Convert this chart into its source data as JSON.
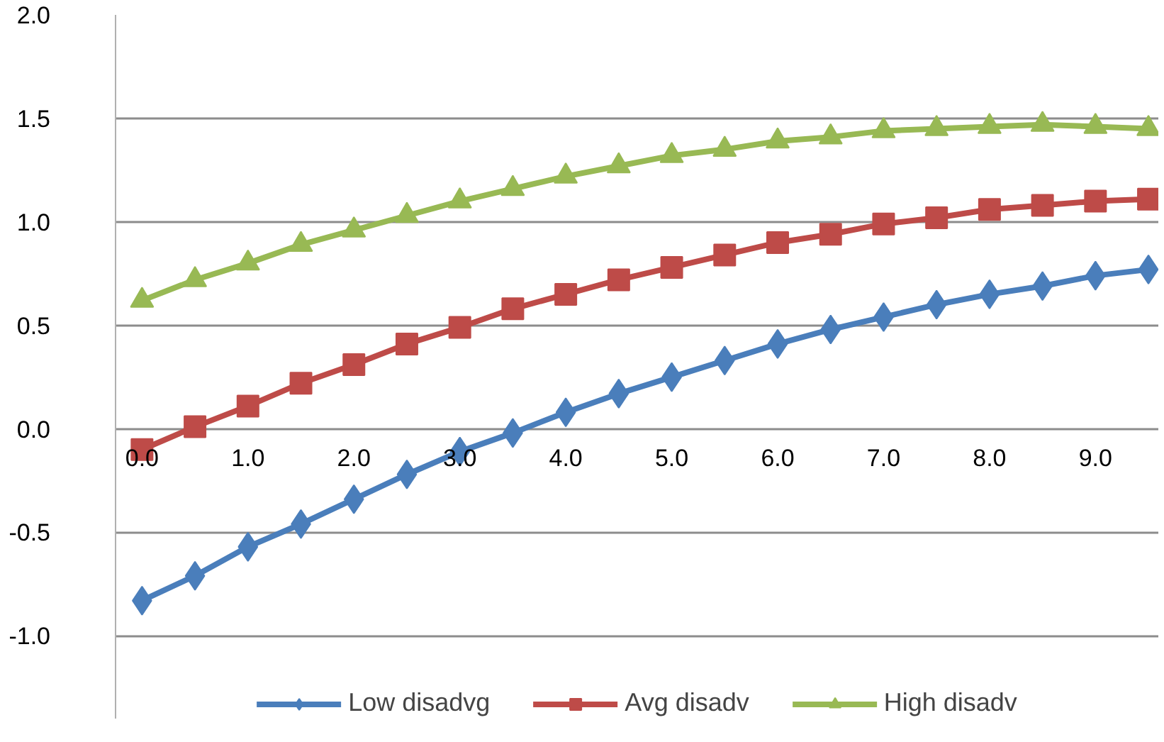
{
  "chart_data": {
    "type": "line",
    "x": [
      0,
      0.5,
      1,
      1.5,
      2,
      2.5,
      3,
      3.5,
      4,
      4.5,
      5,
      5.5,
      6,
      6.5,
      7,
      7.5,
      8,
      8.5,
      9,
      9.5
    ],
    "series": [
      {
        "name": "Low disadvg",
        "color": "#4a7ebb",
        "marker": "diamond",
        "values": [
          -0.83,
          -0.71,
          -0.57,
          -0.46,
          -0.34,
          -0.22,
          -0.11,
          -0.02,
          0.08,
          0.17,
          0.25,
          0.33,
          0.41,
          0.48,
          0.54,
          0.6,
          0.65,
          0.69,
          0.74,
          0.77
        ]
      },
      {
        "name": "Avg disadv",
        "color": "#be4b48",
        "marker": "square",
        "values": [
          -0.1,
          0.01,
          0.11,
          0.22,
          0.31,
          0.41,
          0.49,
          0.58,
          0.65,
          0.72,
          0.78,
          0.84,
          0.9,
          0.94,
          0.99,
          1.02,
          1.06,
          1.08,
          1.1,
          1.11
        ]
      },
      {
        "name": "High disadv",
        "color": "#98b954",
        "marker": "triangle",
        "values": [
          0.62,
          0.72,
          0.8,
          0.89,
          0.96,
          1.03,
          1.1,
          1.16,
          1.22,
          1.27,
          1.32,
          1.35,
          1.39,
          1.41,
          1.44,
          1.45,
          1.46,
          1.47,
          1.46,
          1.45
        ]
      }
    ],
    "xlim": [
      -0.25,
      9.6
    ],
    "xticks": [
      {
        "value": 0,
        "label": "0.0"
      },
      {
        "value": 1,
        "label": "1.0"
      },
      {
        "value": 2,
        "label": "2.0"
      },
      {
        "value": 3,
        "label": "3.0"
      },
      {
        "value": 4,
        "label": "4.0"
      },
      {
        "value": 5,
        "label": "5.0"
      },
      {
        "value": 6,
        "label": "6.0"
      },
      {
        "value": 7,
        "label": "7.0"
      },
      {
        "value": 8,
        "label": "8.0"
      },
      {
        "value": 9,
        "label": "9.0"
      }
    ],
    "ylim": [
      -1.4,
      2.0
    ],
    "yticks": [
      {
        "value": -1,
        "label": "-1.0"
      },
      {
        "value": -0.5,
        "label": "-0.5"
      },
      {
        "value": 0,
        "label": "0.0"
      },
      {
        "value": 0.5,
        "label": "0.5"
      },
      {
        "value": 1,
        "label": "1.0"
      },
      {
        "value": 1.5,
        "label": "1.5"
      },
      {
        "value": 2,
        "label": "2.0"
      }
    ],
    "grid": "y",
    "legend": "bottom",
    "line_style": "solid"
  }
}
